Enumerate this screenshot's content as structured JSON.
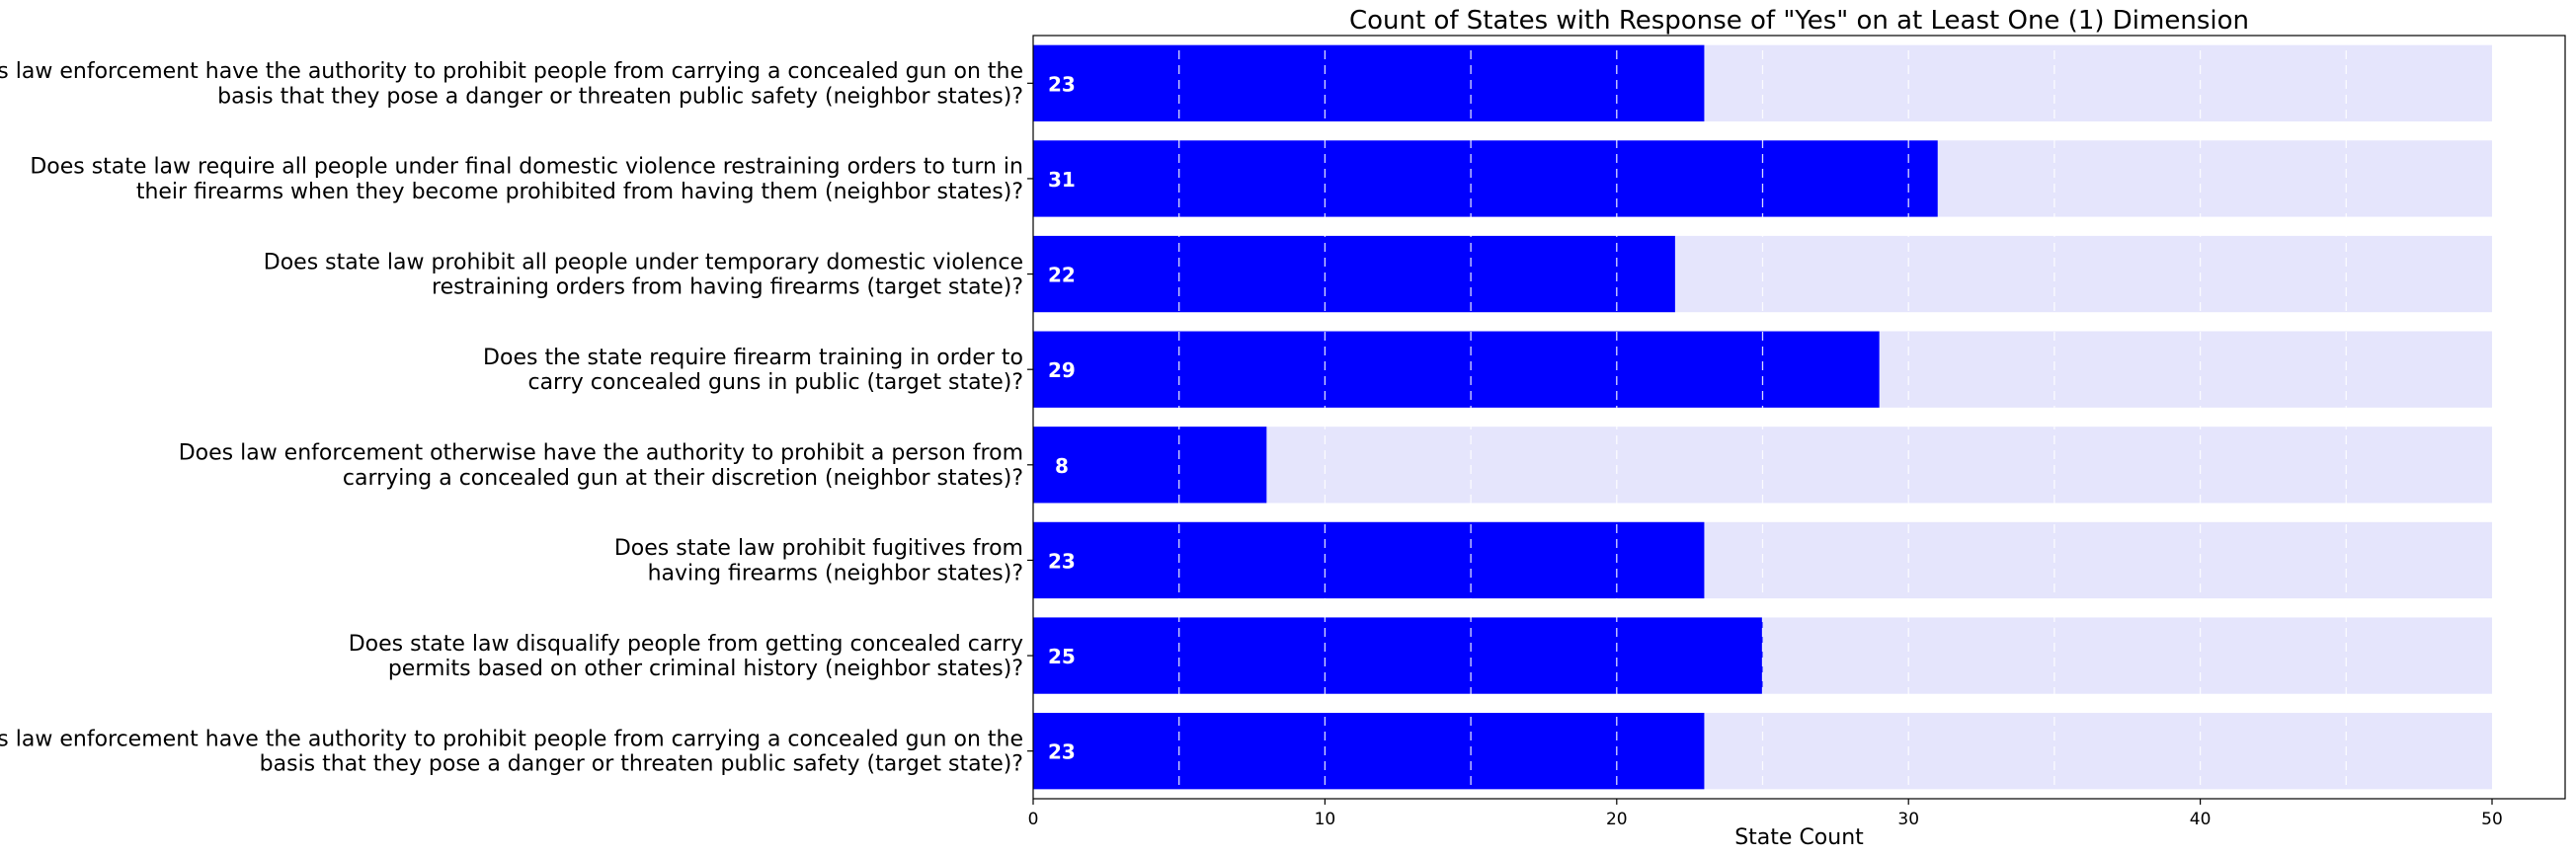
{
  "chart_data": {
    "type": "bar",
    "orientation": "horizontal",
    "title": "Count of States with Response of \"Yes\" on at Least One (1) Dimension",
    "xlabel": "State Count",
    "ylabel": "",
    "xlim": [
      0,
      52.5
    ],
    "xticks": [
      0,
      10,
      20,
      30,
      40,
      50
    ],
    "background_max": 50,
    "grid": "vertical dashed lines every 5",
    "colors": {
      "bar": "#0000ff",
      "background_bar": "#e5e5fc",
      "grid": "#ffffff"
    },
    "categories": [
      [
        "Does law enforcement have the authority to prohibit people from carrying a concealed gun on the",
        "basis that they pose a danger or threaten public safety (neighbor states)?"
      ],
      [
        "Does state law require all people under final domestic violence restraining orders to turn in",
        "their firearms when they become prohibited from having them (neighbor states)?"
      ],
      [
        "Does state law prohibit all people under temporary domestic violence",
        "restraining orders from having firearms (target state)?"
      ],
      [
        "Does the state require firearm training in order to",
        "carry concealed guns in public (target state)?"
      ],
      [
        "Does law enforcement otherwise have the authority to prohibit a person from",
        "carrying a concealed gun at their discretion (neighbor states)?"
      ],
      [
        "Does state law prohibit fugitives from",
        "having firearms (neighbor states)?"
      ],
      [
        "Does state law disqualify people from getting concealed carry",
        "permits based on other criminal history (neighbor states)?"
      ],
      [
        "Does law enforcement have the authority to prohibit people from carrying a concealed gun on the",
        "basis that they pose a danger or threaten public safety (target state)?"
      ]
    ],
    "values": [
      23,
      31,
      22,
      29,
      8,
      23,
      25,
      23
    ]
  }
}
